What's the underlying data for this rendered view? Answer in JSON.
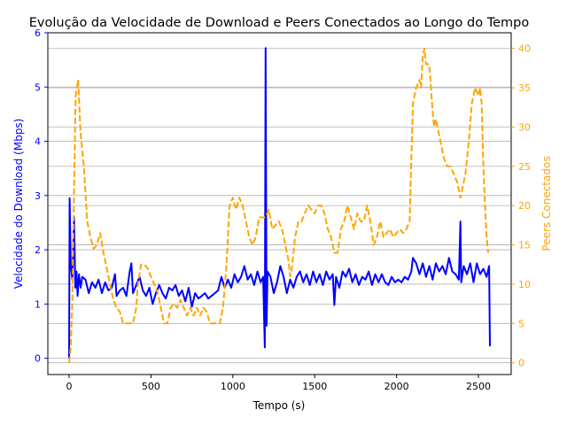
{
  "chart_data": {
    "type": "line",
    "title": "Evolução da Velocidade de Download e Peers Conectados ao Longo do Tempo",
    "xlabel": "Tempo (s)",
    "ylabel_left": "Velocidade do Download (Mbps)",
    "ylabel_right": "Peers Conectados",
    "xlim": [
      -130,
      2700
    ],
    "ylim_left": [
      -0.3,
      6.0
    ],
    "ylim_right": [
      -1.5,
      42.0
    ],
    "x_ticks": [
      0,
      500,
      1000,
      1500,
      2000,
      2500
    ],
    "y_ticks_left": [
      0,
      1,
      2,
      3,
      4,
      5,
      6
    ],
    "y_ticks_right": [
      0,
      5,
      10,
      15,
      20,
      25,
      30,
      35,
      40
    ],
    "grid": "horizontal",
    "colors": {
      "left": "#0000ff",
      "right": "#ffa500",
      "grid": "#b0b0b0"
    },
    "series": [
      {
        "axis": "left",
        "style": "solid",
        "points": [
          [
            0,
            0
          ],
          [
            3,
            2.95
          ],
          [
            10,
            1.7
          ],
          [
            20,
            1.45
          ],
          [
            30,
            2.6
          ],
          [
            38,
            1.3
          ],
          [
            45,
            1.6
          ],
          [
            52,
            1.15
          ],
          [
            60,
            1.55
          ],
          [
            70,
            1.3
          ],
          [
            80,
            1.5
          ],
          [
            100,
            1.45
          ],
          [
            120,
            1.2
          ],
          [
            140,
            1.4
          ],
          [
            160,
            1.3
          ],
          [
            180,
            1.45
          ],
          [
            200,
            1.2
          ],
          [
            220,
            1.4
          ],
          [
            240,
            1.25
          ],
          [
            260,
            1.3
          ],
          [
            280,
            1.55
          ],
          [
            290,
            1.15
          ],
          [
            310,
            1.25
          ],
          [
            330,
            1.3
          ],
          [
            350,
            1.15
          ],
          [
            370,
            1.6
          ],
          [
            380,
            1.75
          ],
          [
            390,
            1.2
          ],
          [
            410,
            1.35
          ],
          [
            430,
            1.5
          ],
          [
            450,
            1.25
          ],
          [
            470,
            1.15
          ],
          [
            490,
            1.3
          ],
          [
            510,
            1.0
          ],
          [
            530,
            1.2
          ],
          [
            550,
            1.35
          ],
          [
            570,
            1.2
          ],
          [
            590,
            1.1
          ],
          [
            610,
            1.3
          ],
          [
            630,
            1.25
          ],
          [
            650,
            1.35
          ],
          [
            670,
            1.15
          ],
          [
            690,
            1.25
          ],
          [
            710,
            1.05
          ],
          [
            730,
            1.3
          ],
          [
            750,
            0.95
          ],
          [
            770,
            1.2
          ],
          [
            790,
            1.1
          ],
          [
            810,
            1.15
          ],
          [
            830,
            1.2
          ],
          [
            850,
            1.1
          ],
          [
            870,
            1.15
          ],
          [
            890,
            1.2
          ],
          [
            910,
            1.25
          ],
          [
            930,
            1.5
          ],
          [
            950,
            1.3
          ],
          [
            970,
            1.45
          ],
          [
            990,
            1.3
          ],
          [
            1010,
            1.55
          ],
          [
            1030,
            1.4
          ],
          [
            1050,
            1.5
          ],
          [
            1070,
            1.7
          ],
          [
            1090,
            1.45
          ],
          [
            1110,
            1.55
          ],
          [
            1130,
            1.35
          ],
          [
            1150,
            1.6
          ],
          [
            1170,
            1.4
          ],
          [
            1185,
            1.5
          ],
          [
            1195,
            0.2
          ],
          [
            1200,
            5.72
          ],
          [
            1206,
            0.6
          ],
          [
            1212,
            1.6
          ],
          [
            1230,
            1.5
          ],
          [
            1250,
            1.2
          ],
          [
            1270,
            1.4
          ],
          [
            1290,
            1.7
          ],
          [
            1310,
            1.5
          ],
          [
            1330,
            1.2
          ],
          [
            1350,
            1.45
          ],
          [
            1370,
            1.3
          ],
          [
            1390,
            1.5
          ],
          [
            1410,
            1.6
          ],
          [
            1430,
            1.4
          ],
          [
            1450,
            1.55
          ],
          [
            1470,
            1.35
          ],
          [
            1490,
            1.6
          ],
          [
            1510,
            1.4
          ],
          [
            1530,
            1.55
          ],
          [
            1550,
            1.35
          ],
          [
            1570,
            1.6
          ],
          [
            1590,
            1.45
          ],
          [
            1610,
            1.55
          ],
          [
            1620,
            0.98
          ],
          [
            1630,
            1.5
          ],
          [
            1650,
            1.3
          ],
          [
            1670,
            1.6
          ],
          [
            1690,
            1.5
          ],
          [
            1710,
            1.65
          ],
          [
            1730,
            1.4
          ],
          [
            1750,
            1.55
          ],
          [
            1770,
            1.35
          ],
          [
            1790,
            1.5
          ],
          [
            1810,
            1.45
          ],
          [
            1830,
            1.6
          ],
          [
            1850,
            1.35
          ],
          [
            1870,
            1.55
          ],
          [
            1890,
            1.4
          ],
          [
            1910,
            1.55
          ],
          [
            1930,
            1.4
          ],
          [
            1950,
            1.35
          ],
          [
            1970,
            1.5
          ],
          [
            1990,
            1.4
          ],
          [
            2010,
            1.45
          ],
          [
            2030,
            1.4
          ],
          [
            2050,
            1.5
          ],
          [
            2070,
            1.45
          ],
          [
            2090,
            1.6
          ],
          [
            2100,
            1.85
          ],
          [
            2120,
            1.75
          ],
          [
            2140,
            1.55
          ],
          [
            2160,
            1.75
          ],
          [
            2180,
            1.5
          ],
          [
            2200,
            1.7
          ],
          [
            2220,
            1.45
          ],
          [
            2240,
            1.75
          ],
          [
            2260,
            1.6
          ],
          [
            2280,
            1.7
          ],
          [
            2300,
            1.55
          ],
          [
            2320,
            1.85
          ],
          [
            2340,
            1.6
          ],
          [
            2360,
            1.55
          ],
          [
            2380,
            1.45
          ],
          [
            2390,
            2.52
          ],
          [
            2395,
            1.4
          ],
          [
            2410,
            1.7
          ],
          [
            2430,
            1.55
          ],
          [
            2450,
            1.75
          ],
          [
            2470,
            1.4
          ],
          [
            2490,
            1.75
          ],
          [
            2510,
            1.55
          ],
          [
            2530,
            1.65
          ],
          [
            2550,
            1.5
          ],
          [
            2565,
            1.7
          ],
          [
            2570,
            0.22
          ]
        ]
      },
      {
        "axis": "right",
        "style": "dashed",
        "points": [
          [
            0,
            0
          ],
          [
            10,
            2
          ],
          [
            20,
            8
          ],
          [
            30,
            22
          ],
          [
            40,
            34
          ],
          [
            55,
            36
          ],
          [
            70,
            29
          ],
          [
            90,
            25
          ],
          [
            110,
            18
          ],
          [
            130,
            16
          ],
          [
            150,
            14.5
          ],
          [
            170,
            15
          ],
          [
            190,
            16.5
          ],
          [
            210,
            14
          ],
          [
            230,
            12
          ],
          [
            250,
            10
          ],
          [
            270,
            8
          ],
          [
            290,
            7
          ],
          [
            310,
            6.5
          ],
          [
            330,
            5
          ],
          [
            350,
            5
          ],
          [
            370,
            5
          ],
          [
            390,
            5
          ],
          [
            410,
            7
          ],
          [
            420,
            10
          ],
          [
            440,
            12.5
          ],
          [
            460,
            12.5
          ],
          [
            480,
            12
          ],
          [
            500,
            11
          ],
          [
            520,
            10
          ],
          [
            540,
            9
          ],
          [
            560,
            7
          ],
          [
            580,
            5
          ],
          [
            600,
            5
          ],
          [
            620,
            7
          ],
          [
            640,
            7.5
          ],
          [
            660,
            7
          ],
          [
            680,
            8
          ],
          [
            700,
            7
          ],
          [
            720,
            6
          ],
          [
            740,
            7
          ],
          [
            760,
            6
          ],
          [
            780,
            7
          ],
          [
            800,
            6
          ],
          [
            820,
            7
          ],
          [
            840,
            6.5
          ],
          [
            860,
            5
          ],
          [
            880,
            5
          ],
          [
            900,
            5
          ],
          [
            920,
            5
          ],
          [
            940,
            7
          ],
          [
            960,
            12
          ],
          [
            980,
            20
          ],
          [
            1000,
            21
          ],
          [
            1020,
            19.5
          ],
          [
            1040,
            21
          ],
          [
            1060,
            20
          ],
          [
            1080,
            18
          ],
          [
            1100,
            16
          ],
          [
            1120,
            15
          ],
          [
            1140,
            16
          ],
          [
            1160,
            18.5
          ],
          [
            1180,
            18.5
          ],
          [
            1200,
            18.5
          ],
          [
            1220,
            19.5
          ],
          [
            1240,
            17
          ],
          [
            1260,
            17.5
          ],
          [
            1280,
            18
          ],
          [
            1300,
            17
          ],
          [
            1320,
            15
          ],
          [
            1340,
            13
          ],
          [
            1350,
            11
          ],
          [
            1360,
            12
          ],
          [
            1380,
            16
          ],
          [
            1400,
            18
          ],
          [
            1420,
            18
          ],
          [
            1440,
            19
          ],
          [
            1460,
            20
          ],
          [
            1480,
            19.5
          ],
          [
            1500,
            19
          ],
          [
            1520,
            20
          ],
          [
            1540,
            20
          ],
          [
            1560,
            19
          ],
          [
            1580,
            17
          ],
          [
            1600,
            16
          ],
          [
            1620,
            14
          ],
          [
            1640,
            14
          ],
          [
            1660,
            17
          ],
          [
            1680,
            18
          ],
          [
            1700,
            20
          ],
          [
            1720,
            18.5
          ],
          [
            1740,
            17
          ],
          [
            1760,
            19
          ],
          [
            1780,
            18
          ],
          [
            1800,
            18
          ],
          [
            1820,
            20
          ],
          [
            1840,
            18
          ],
          [
            1860,
            15
          ],
          [
            1880,
            16
          ],
          [
            1900,
            18
          ],
          [
            1920,
            16
          ],
          [
            1940,
            16.5
          ],
          [
            1960,
            17
          ],
          [
            1980,
            16
          ],
          [
            2000,
            16.5
          ],
          [
            2020,
            17
          ],
          [
            2040,
            16.5
          ],
          [
            2060,
            17
          ],
          [
            2080,
            18
          ],
          [
            2090,
            26
          ],
          [
            2100,
            33
          ],
          [
            2120,
            35
          ],
          [
            2140,
            36
          ],
          [
            2150,
            35
          ],
          [
            2160,
            39
          ],
          [
            2170,
            40
          ],
          [
            2180,
            38
          ],
          [
            2200,
            38
          ],
          [
            2210,
            35
          ],
          [
            2220,
            32
          ],
          [
            2230,
            30
          ],
          [
            2240,
            31
          ],
          [
            2250,
            30
          ],
          [
            2270,
            28
          ],
          [
            2290,
            26
          ],
          [
            2310,
            25
          ],
          [
            2330,
            25
          ],
          [
            2350,
            24
          ],
          [
            2370,
            23
          ],
          [
            2390,
            21
          ],
          [
            2400,
            22
          ],
          [
            2420,
            24
          ],
          [
            2440,
            28
          ],
          [
            2460,
            33
          ],
          [
            2480,
            35
          ],
          [
            2500,
            34
          ],
          [
            2510,
            35
          ],
          [
            2520,
            33
          ],
          [
            2530,
            25
          ],
          [
            2540,
            20
          ],
          [
            2550,
            16
          ],
          [
            2560,
            14
          ]
        ]
      }
    ]
  }
}
